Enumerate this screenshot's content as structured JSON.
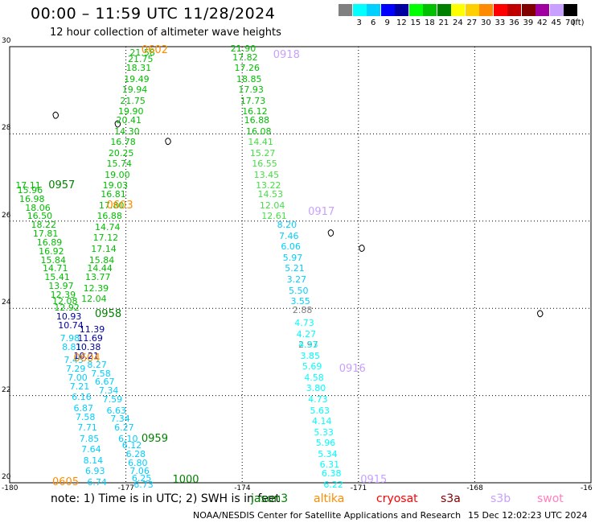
{
  "header": {
    "title": "00:00 – 11:59 UTC 11/28/2024",
    "subtitle": "12 hour collection of altimeter wave heights"
  },
  "scale": {
    "unit": "(ft)",
    "bins": [
      {
        "label": "",
        "color": "#808080"
      },
      {
        "label": "3",
        "color": "#00ffff"
      },
      {
        "label": "6",
        "color": "#00d0ff"
      },
      {
        "label": "9",
        "color": "#0000ff"
      },
      {
        "label": "12",
        "color": "#0000a0"
      },
      {
        "label": "15",
        "color": "#00ff00"
      },
      {
        "label": "18",
        "color": "#00c000"
      },
      {
        "label": "21",
        "color": "#008000"
      },
      {
        "label": "24",
        "color": "#ffff00"
      },
      {
        "label": "27",
        "color": "#ffd000"
      },
      {
        "label": "30",
        "color": "#ff8c00"
      },
      {
        "label": "33",
        "color": "#ff0000"
      },
      {
        "label": "36",
        "color": "#c00000"
      },
      {
        "label": "39",
        "color": "#800000"
      },
      {
        "label": "42",
        "color": "#a000a0"
      },
      {
        "label": "45",
        "color": "#c8a0ff"
      },
      {
        "label": "70",
        "color": "#000000"
      }
    ]
  },
  "axes": {
    "lat_ticks": [
      "30",
      "28",
      "26",
      "24",
      "22",
      "20"
    ],
    "lon_ticks": [
      "-180",
      "-177",
      "-174",
      "-171",
      "-168",
      "-16"
    ],
    "lat_range": [
      20,
      30
    ],
    "lon_range": [
      -180,
      -165
    ]
  },
  "footer": {
    "note": "note: 1) Time is in UTC; 2) SWH is in feet",
    "satellites": [
      {
        "name": "jason3",
        "color": "#008000"
      },
      {
        "name": "altika",
        "color": "#ff8c00"
      },
      {
        "name": "cryosat",
        "color": "#ff0000"
      },
      {
        "name": "s3a",
        "color": "#800000"
      },
      {
        "name": "s3b",
        "color": "#c8a0ff"
      },
      {
        "name": "swot",
        "color": "#ff80c0"
      }
    ],
    "credit": "NOAA/NESDIS Center for Satellite Applications and Research",
    "timestamp": "15 Dec 12:02:23 UTC 2024"
  },
  "passes": [
    {
      "label": "0602",
      "lon": -176.6,
      "lat": 29.9,
      "color": "#ff8c00"
    },
    {
      "label": "0918",
      "lon": -173.2,
      "lat": 29.8,
      "color": "#c8a0ff"
    },
    {
      "label": "0957",
      "lon": -179.0,
      "lat": 26.8,
      "color": "#008000"
    },
    {
      "label": "0603",
      "lon": -177.5,
      "lat": 26.35,
      "color": "#ff8c00"
    },
    {
      "label": "0917",
      "lon": -172.3,
      "lat": 26.2,
      "color": "#c8a0ff"
    },
    {
      "label": "0958",
      "lon": -177.8,
      "lat": 23.85,
      "color": "#008000"
    },
    {
      "label": "0604",
      "lon": -178.35,
      "lat": 22.85,
      "color": "#ff8c00"
    },
    {
      "label": "0916",
      "lon": -171.5,
      "lat": 22.6,
      "color": "#c8a0ff"
    },
    {
      "label": "0959",
      "lon": -176.6,
      "lat": 21.0,
      "color": "#008000"
    },
    {
      "label": "1000",
      "lon": -175.8,
      "lat": 20.05,
      "color": "#008000"
    },
    {
      "label": "0605",
      "lon": -178.9,
      "lat": 20.0,
      "color": "#ff8c00"
    },
    {
      "label": "0915",
      "lon": -170.95,
      "lat": 20.05,
      "color": "#c8a0ff"
    }
  ],
  "tracks": [
    {
      "name": "jason3-0957-0958",
      "color": "#00c000",
      "readings": [
        {
          "v": "17.11",
          "lon": -179.85,
          "lat": 26.8
        },
        {
          "v": "15.96",
          "lon": -179.8,
          "lat": 26.7
        },
        {
          "v": "16.98",
          "lon": -179.75,
          "lat": 26.5
        },
        {
          "v": "18.06",
          "lon": -179.6,
          "lat": 26.3
        },
        {
          "v": "16.50",
          "lon": -179.55,
          "lat": 26.1
        },
        {
          "v": "18.22",
          "lon": -179.45,
          "lat": 25.9
        },
        {
          "v": "17.81",
          "lon": -179.4,
          "lat": 25.7
        },
        {
          "v": "16.89",
          "lon": -179.3,
          "lat": 25.5
        },
        {
          "v": "16.92",
          "lon": -179.25,
          "lat": 25.3
        },
        {
          "v": "15.84",
          "lon": -179.2,
          "lat": 25.1
        },
        {
          "v": "14.71",
          "lon": -179.15,
          "lat": 24.9
        },
        {
          "v": "15.41",
          "lon": -179.1,
          "lat": 24.7
        },
        {
          "v": "13.97",
          "lon": -179.0,
          "lat": 24.5
        },
        {
          "v": "12.39",
          "lon": -178.95,
          "lat": 24.3
        },
        {
          "v": "12.08",
          "lon": -178.9,
          "lat": 24.15
        },
        {
          "v": "12.92",
          "lon": -178.85,
          "lat": 24.0
        }
      ]
    },
    {
      "name": "jason3-0957-0958-blue",
      "color": "#0000a0",
      "readings": [
        {
          "v": "10.93",
          "lon": -178.8,
          "lat": 23.8
        },
        {
          "v": "10.74",
          "lon": -178.75,
          "lat": 23.6
        }
      ]
    },
    {
      "name": "jason3-0957-0958-cyan",
      "color": "#00d0ff",
      "readings": [
        {
          "v": "7.98",
          "lon": -178.7,
          "lat": 23.3
        },
        {
          "v": "8.81",
          "lon": -178.65,
          "lat": 23.1
        },
        {
          "v": "7.45",
          "lon": -178.6,
          "lat": 22.8
        },
        {
          "v": "7.29",
          "lon": -178.55,
          "lat": 22.6
        },
        {
          "v": "7.00",
          "lon": -178.5,
          "lat": 22.4
        },
        {
          "v": "7.21",
          "lon": -178.45,
          "lat": 22.2
        },
        {
          "v": "6.16",
          "lon": -178.4,
          "lat": 21.95
        },
        {
          "v": "6.87",
          "lon": -178.35,
          "lat": 21.7
        },
        {
          "v": "7.58",
          "lon": -178.3,
          "lat": 21.5
        },
        {
          "v": "7.71",
          "lon": -178.25,
          "lat": 21.25
        },
        {
          "v": "7.85",
          "lon": -178.2,
          "lat": 21.0
        },
        {
          "v": "7.64",
          "lon": -178.15,
          "lat": 20.75
        },
        {
          "v": "8.14",
          "lon": -178.1,
          "lat": 20.5
        },
        {
          "v": "6.93",
          "lon": -178.05,
          "lat": 20.25
        },
        {
          "v": "6.74",
          "lon": -178.0,
          "lat": 20.0
        }
      ]
    },
    {
      "name": "altika-0602-0603",
      "color": "#00c000",
      "readings": [
        {
          "v": "21.58",
          "lon": -176.9,
          "lat": 29.85
        },
        {
          "v": "21.75",
          "lon": -176.95,
          "lat": 29.7
        },
        {
          "v": "18.31",
          "lon": -177.0,
          "lat": 29.5
        },
        {
          "v": "19.49",
          "lon": -177.05,
          "lat": 29.25
        },
        {
          "v": "19.94",
          "lon": -177.1,
          "lat": 29.0
        },
        {
          "v": "21.75",
          "lon": -177.15,
          "lat": 28.75
        },
        {
          "v": "19.90",
          "lon": -177.2,
          "lat": 28.5
        },
        {
          "v": "20.41",
          "lon": -177.25,
          "lat": 28.3
        },
        {
          "v": "14.30",
          "lon": -177.3,
          "lat": 28.05
        },
        {
          "v": "16.78",
          "lon": -177.4,
          "lat": 27.8
        },
        {
          "v": "20.25",
          "lon": -177.45,
          "lat": 27.55
        },
        {
          "v": "15.74",
          "lon": -177.5,
          "lat": 27.3
        },
        {
          "v": "19.00",
          "lon": -177.55,
          "lat": 27.05
        },
        {
          "v": "19.03",
          "lon": -177.6,
          "lat": 26.8
        },
        {
          "v": "16.81",
          "lon": -177.65,
          "lat": 26.6
        },
        {
          "v": "17.80",
          "lon": -177.7,
          "lat": 26.35
        },
        {
          "v": "16.88",
          "lon": -177.75,
          "lat": 26.1
        },
        {
          "v": "14.74",
          "lon": -177.8,
          "lat": 25.85
        },
        {
          "v": "17.12",
          "lon": -177.85,
          "lat": 25.6
        },
        {
          "v": "17.14",
          "lon": -177.9,
          "lat": 25.35
        },
        {
          "v": "15.84",
          "lon": -177.95,
          "lat": 25.1
        },
        {
          "v": "14.44",
          "lon": -178.0,
          "lat": 24.9
        },
        {
          "v": "13.77",
          "lon": -178.05,
          "lat": 24.7
        },
        {
          "v": "12.39",
          "lon": -178.1,
          "lat": 24.45
        },
        {
          "v": "12.04",
          "lon": -178.15,
          "lat": 24.2
        }
      ]
    },
    {
      "name": "altika-0603-0604",
      "color": "#0000a0",
      "readings": [
        {
          "v": "11.39",
          "lon": -178.2,
          "lat": 23.5
        },
        {
          "v": "11.69",
          "lon": -178.25,
          "lat": 23.3
        },
        {
          "v": "10.38",
          "lon": -178.3,
          "lat": 23.1
        },
        {
          "v": "10.21",
          "lon": -178.35,
          "lat": 22.9
        }
      ]
    },
    {
      "name": "altika-0604-0605",
      "color": "#00d0ff",
      "readings": [
        {
          "v": "8.27",
          "lon": -178.0,
          "lat": 22.7
        },
        {
          "v": "7.58",
          "lon": -177.9,
          "lat": 22.5
        },
        {
          "v": "6.67",
          "lon": -177.8,
          "lat": 22.3
        },
        {
          "v": "7.34",
          "lon": -177.7,
          "lat": 22.1
        },
        {
          "v": "7.59",
          "lon": -177.6,
          "lat": 21.9
        },
        {
          "v": "6.63",
          "lon": -177.5,
          "lat": 21.65
        },
        {
          "v": "7.34",
          "lon": -177.4,
          "lat": 21.45
        },
        {
          "v": "6.27",
          "lon": -177.3,
          "lat": 21.25
        },
        {
          "v": "6.10",
          "lon": -177.2,
          "lat": 21.0
        },
        {
          "v": "6.12",
          "lon": -177.1,
          "lat": 20.85
        },
        {
          "v": "6.28",
          "lon": -177.0,
          "lat": 20.65
        },
        {
          "v": "6.80",
          "lon": -176.95,
          "lat": 20.45
        },
        {
          "v": "7.06",
          "lon": -176.9,
          "lat": 20.25
        },
        {
          "v": "6.25",
          "lon": -176.85,
          "lat": 20.1
        },
        {
          "v": "6.73",
          "lon": -176.8,
          "lat": 19.95
        }
      ]
    },
    {
      "name": "s3b-0918-0917",
      "color": "#00c000",
      "readings": [
        {
          "v": "21.90",
          "lon": -174.3,
          "lat": 29.95
        },
        {
          "v": "17.82",
          "lon": -174.25,
          "lat": 29.75
        },
        {
          "v": "17.26",
          "lon": -174.2,
          "lat": 29.5
        },
        {
          "v": "18.85",
          "lon": -174.15,
          "lat": 29.25
        },
        {
          "v": "17.93",
          "lon": -174.1,
          "lat": 29.0
        },
        {
          "v": "17.73",
          "lon": -174.05,
          "lat": 28.75
        },
        {
          "v": "16.12",
          "lon": -174.0,
          "lat": 28.5
        },
        {
          "v": "16.88",
          "lon": -173.95,
          "lat": 28.3
        },
        {
          "v": "16.08",
          "lon": -173.9,
          "lat": 28.05
        }
      ]
    },
    {
      "name": "s3b-0917-light",
      "color": "#44e044",
      "readings": [
        {
          "v": "14.41",
          "lon": -173.85,
          "lat": 27.8
        },
        {
          "v": "15.27",
          "lon": -173.8,
          "lat": 27.55
        },
        {
          "v": "16.55",
          "lon": -173.75,
          "lat": 27.3
        },
        {
          "v": "13.45",
          "lon": -173.7,
          "lat": 27.05
        },
        {
          "v": "13.22",
          "lon": -173.65,
          "lat": 26.8
        },
        {
          "v": "14.53",
          "lon": -173.6,
          "lat": 26.6
        },
        {
          "v": "12.04",
          "lon": -173.55,
          "lat": 26.35
        },
        {
          "v": "12.61",
          "lon": -173.5,
          "lat": 26.1
        }
      ]
    },
    {
      "name": "s3b-0917-0916",
      "color": "#00d0ff",
      "readings": [
        {
          "v": "8.20",
          "lon": -173.1,
          "lat": 25.9
        },
        {
          "v": "7.46",
          "lon": -173.05,
          "lat": 25.65
        },
        {
          "v": "6.06",
          "lon": -173.0,
          "lat": 25.4
        },
        {
          "v": "5.97",
          "lon": -172.95,
          "lat": 25.15
        },
        {
          "v": "5.21",
          "lon": -172.9,
          "lat": 24.9
        },
        {
          "v": "3.27",
          "lon": -172.85,
          "lat": 24.65
        },
        {
          "v": "5.50",
          "lon": -172.8,
          "lat": 24.4
        },
        {
          "v": "3.55",
          "lon": -172.75,
          "lat": 24.15
        }
      ]
    },
    {
      "name": "s3b-0916-grey",
      "color": "#808080",
      "readings": [
        {
          "v": "2.88",
          "lon": -172.7,
          "lat": 23.95
        },
        {
          "v": "2.97",
          "lon": -172.55,
          "lat": 23.15
        }
      ]
    },
    {
      "name": "s3b-0916-0915",
      "color": "#00ffff",
      "readings": [
        {
          "v": "4.73",
          "lon": -172.65,
          "lat": 23.65
        },
        {
          "v": "4.27",
          "lon": -172.6,
          "lat": 23.4
        },
        {
          "v": "4.33",
          "lon": -172.55,
          "lat": 23.15
        },
        {
          "v": "3.85",
          "lon": -172.5,
          "lat": 22.9
        },
        {
          "v": "5.69",
          "lon": -172.45,
          "lat": 22.65
        },
        {
          "v": "4.58",
          "lon": -172.4,
          "lat": 22.4
        },
        {
          "v": "3.80",
          "lon": -172.35,
          "lat": 22.15
        },
        {
          "v": "4.73",
          "lon": -172.3,
          "lat": 21.9
        },
        {
          "v": "5.63",
          "lon": -172.25,
          "lat": 21.65
        },
        {
          "v": "4.14",
          "lon": -172.2,
          "lat": 21.4
        },
        {
          "v": "5.33",
          "lon": -172.15,
          "lat": 21.15
        },
        {
          "v": "5.96",
          "lon": -172.1,
          "lat": 20.9
        },
        {
          "v": "5.34",
          "lon": -172.05,
          "lat": 20.65
        },
        {
          "v": "6.31",
          "lon": -172.0,
          "lat": 20.4
        },
        {
          "v": "6.38",
          "lon": -171.95,
          "lat": 20.2
        },
        {
          "v": "6.22",
          "lon": -171.9,
          "lat": 19.95
        }
      ]
    }
  ],
  "islands": [
    {
      "name": "island",
      "lon": -178.8,
      "lat": 28.45
    },
    {
      "name": "island",
      "lon": -177.2,
      "lat": 28.25
    },
    {
      "name": "island",
      "lon": -175.9,
      "lat": 27.85
    },
    {
      "name": "island",
      "lon": -171.7,
      "lat": 25.75
    },
    {
      "name": "island",
      "lon": -170.9,
      "lat": 25.4
    },
    {
      "name": "island",
      "lon": -166.3,
      "lat": 23.9
    }
  ]
}
